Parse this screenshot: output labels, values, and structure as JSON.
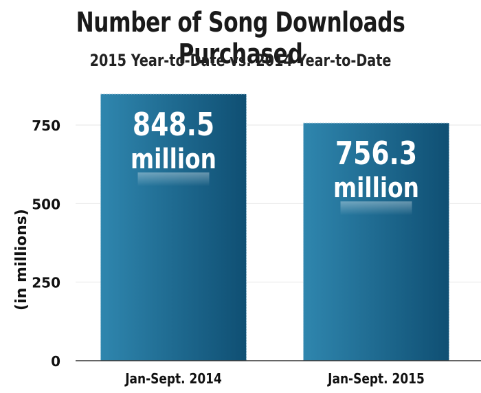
{
  "title": "Number of Song Downloads Purchased",
  "subtitle": "2015 Year-to-Date vs. 2014 Year-to-Date",
  "chart_data": {
    "type": "bar",
    "title": "Number of Song Downloads Purchased",
    "subtitle": "2015 Year-to-Date vs. 2014 Year-to-Date",
    "categories": [
      "Jan-Sept. 2014",
      "Jan-Sept. 2015"
    ],
    "values": [
      848.5,
      756.3
    ],
    "value_labels": [
      {
        "number": "848.5",
        "unit": "million"
      },
      {
        "number": "756.3",
        "unit": "million"
      }
    ],
    "xlabel": "",
    "ylabel": "(in millions)",
    "ylim": [
      0,
      848.5
    ],
    "yticks": [
      0,
      250,
      500,
      750
    ],
    "grid": true,
    "colors": {
      "bar_dark": "#0f4f73",
      "bar_light": "#2f86ae",
      "grid": "#e6e6e6",
      "axis": "#333333"
    }
  }
}
